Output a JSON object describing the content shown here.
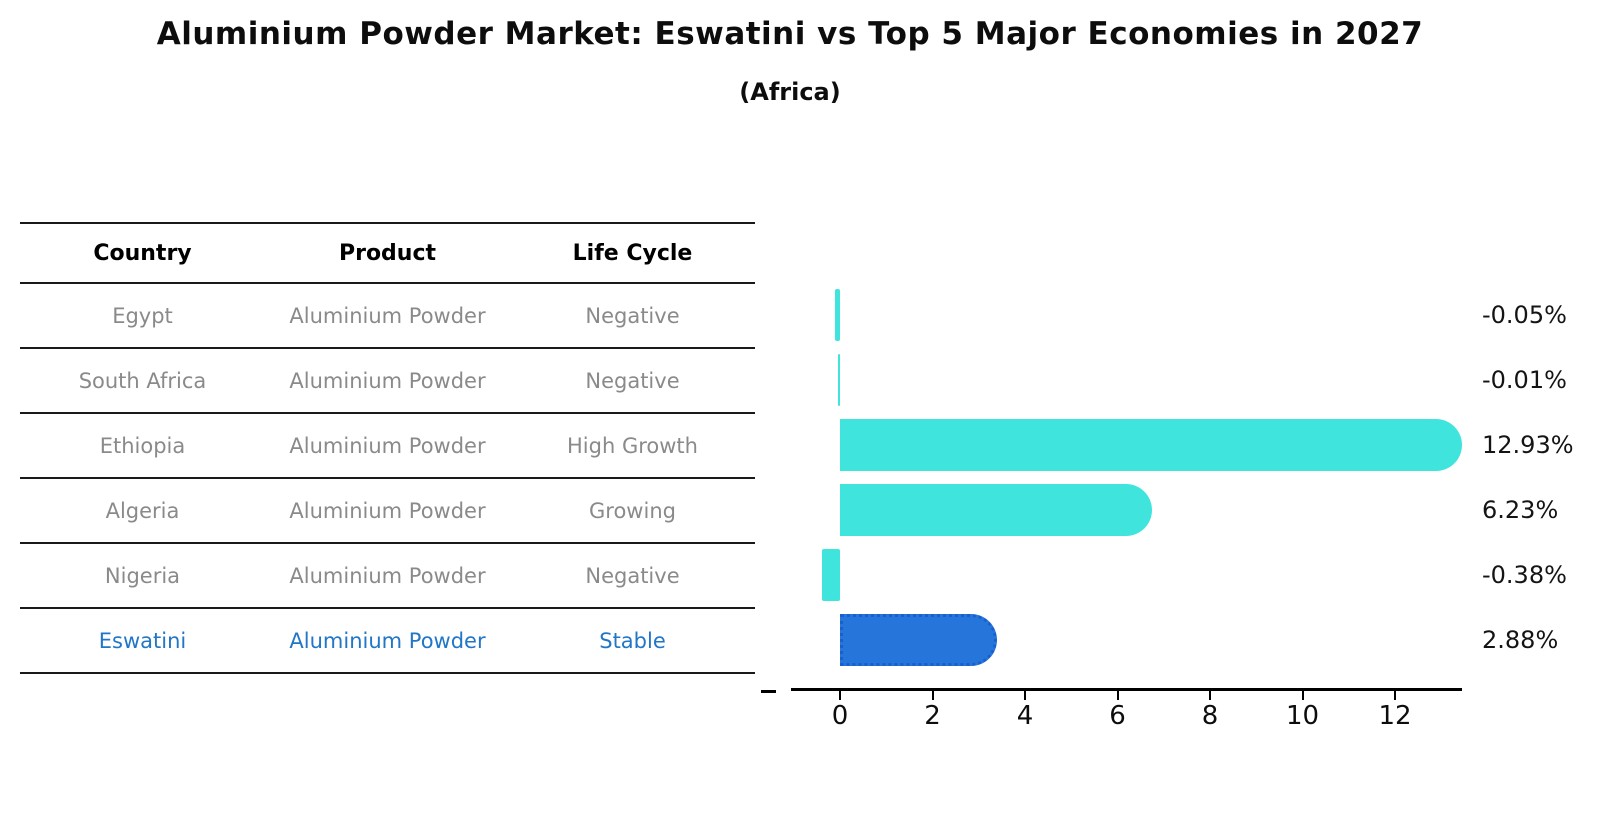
{
  "title": "Aluminium Powder Market: Eswatini vs Top 5 Major Economies in 2027",
  "subtitle": "(Africa)",
  "table": {
    "headers": [
      "Country",
      "Product",
      "Life Cycle"
    ],
    "rows": [
      {
        "country": "Egypt",
        "product": "Aluminium Powder",
        "life_cycle": "Negative",
        "highlight": false
      },
      {
        "country": "South Africa",
        "product": "Aluminium Powder",
        "life_cycle": "Negative",
        "highlight": false
      },
      {
        "country": "Ethiopia",
        "product": "Aluminium Powder",
        "life_cycle": "High Growth",
        "highlight": false
      },
      {
        "country": "Algeria",
        "product": "Aluminium Powder",
        "life_cycle": "Growing",
        "highlight": false
      },
      {
        "country": "Nigeria",
        "product": "Aluminium Powder",
        "life_cycle": "Negative",
        "highlight": false
      },
      {
        "country": "Eswatini",
        "product": "Aluminium Powder",
        "life_cycle": "Stable",
        "highlight": true
      }
    ]
  },
  "chart_data": {
    "type": "bar",
    "orientation": "horizontal",
    "title": "Aluminium Powder Market: Eswatini vs Top 5 Major Economies in 2027",
    "subtitle": "(Africa)",
    "categories": [
      "Egypt",
      "South Africa",
      "Ethiopia",
      "Algeria",
      "Nigeria",
      "Eswatini"
    ],
    "values": [
      -0.05,
      -0.01,
      12.93,
      6.23,
      -0.38,
      2.88
    ],
    "labels": [
      "-0.05%",
      "-0.01%",
      "12.93%",
      "6.23%",
      "-0.38%",
      "2.88%"
    ],
    "x_ticks": [
      0,
      2,
      4,
      6,
      8,
      10,
      12
    ],
    "xlim": [
      -1.7,
      13.4
    ],
    "ylabel": "",
    "xlabel": "",
    "grid": false,
    "legend": false,
    "highlight_index": 5,
    "bar_color": "#3FE5DC",
    "highlight_color": "#2575DB",
    "highlight_border_color": "#1A5FD0",
    "highlight_text_color": "#2176C7"
  }
}
